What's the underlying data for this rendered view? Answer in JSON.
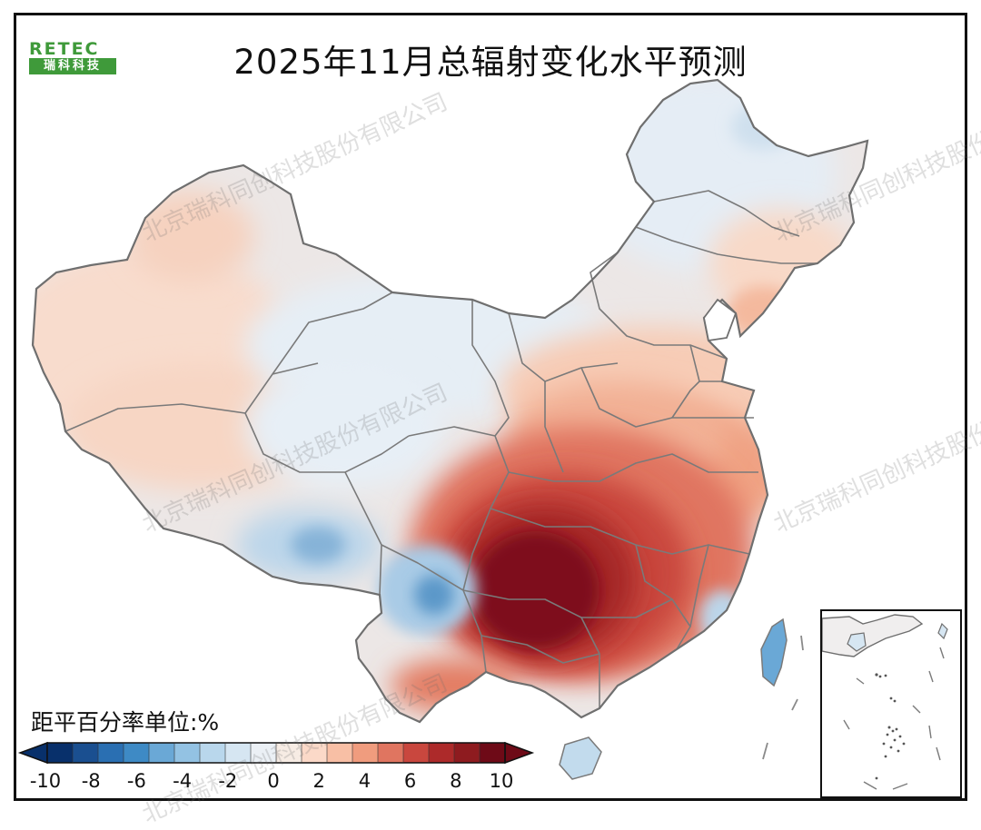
{
  "title": "2025年11月总辐射变化水平预测",
  "logo": {
    "top": "RETEC",
    "bottom": "瑞科科技"
  },
  "watermark": "北京瑞科同创科技股份有限公司",
  "legend": {
    "title": "距平百分率单位:%",
    "min": -10,
    "max": 10,
    "step": 1,
    "tick_labels": [
      "-10",
      "-8",
      "-6",
      "-4",
      "-2",
      "0",
      "2",
      "4",
      "6",
      "8",
      "10"
    ],
    "colors": [
      "#08306b",
      "#1a4f90",
      "#2a6fb2",
      "#3e8ac5",
      "#6aa8d6",
      "#93c2e3",
      "#b9d7ec",
      "#d6e6f2",
      "#ebf0f5",
      "#f7ece4",
      "#fbd9c8",
      "#f8bfa5",
      "#f09c7e",
      "#e07560",
      "#c9473e",
      "#ad2a2a",
      "#8e1b1f",
      "#6e0a17"
    ]
  },
  "colors": {
    "neutral": "#eaf1f7",
    "border": "#7a7a7a",
    "ocean": "#ffffff"
  }
}
